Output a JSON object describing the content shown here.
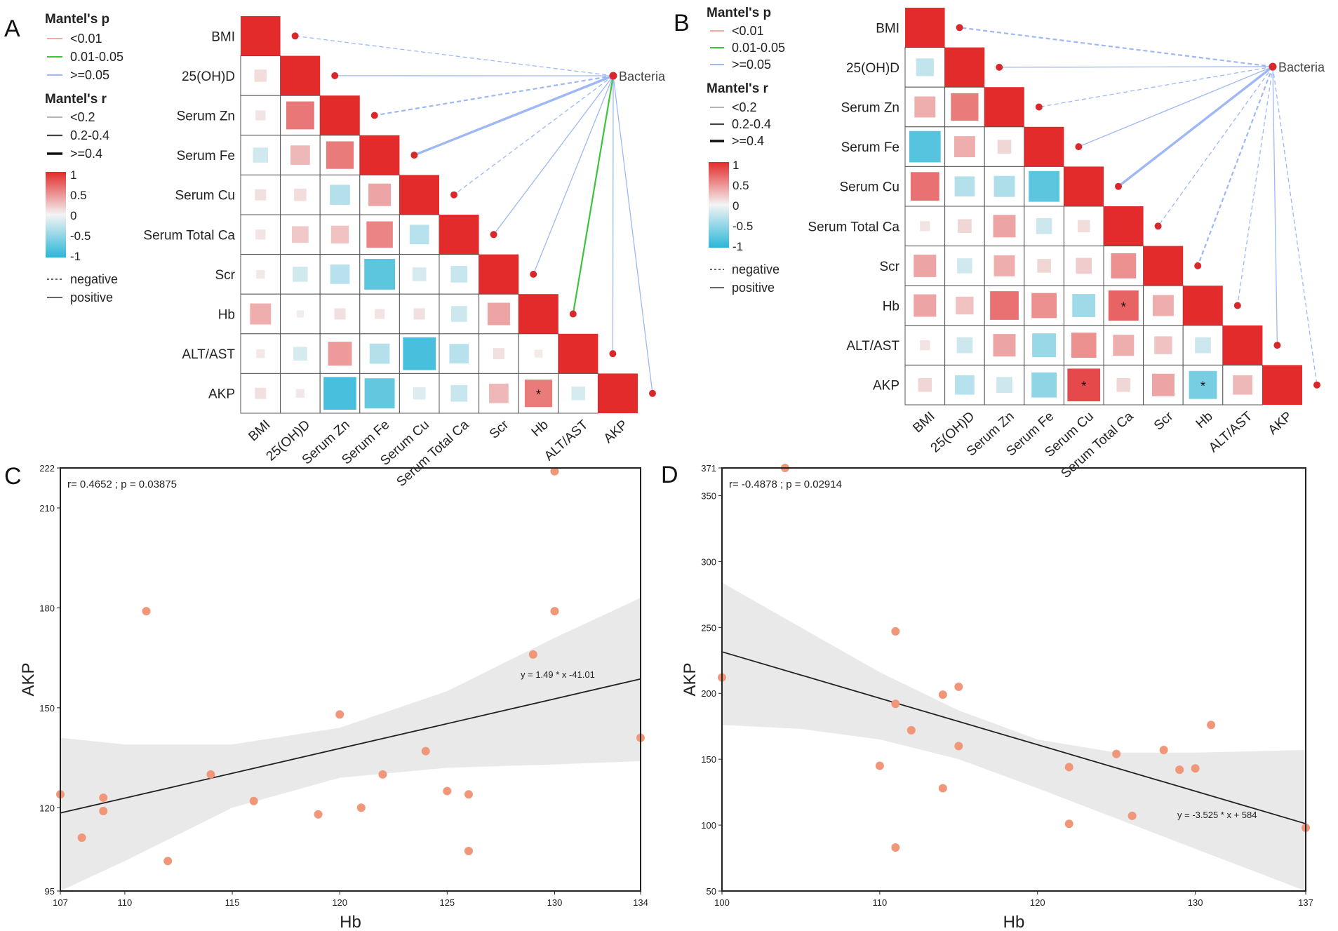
{
  "colors": {
    "neg_strong": "#2ab6d8",
    "neutral": "#f4f4f4",
    "pos_strong": "#e32b2b",
    "p_lt_001": "#f4a9a0",
    "p_001_005": "#3cc43c",
    "p_ge_005": "#9db8f5",
    "node": "#d8282b",
    "point": "#f0977a",
    "ci_band": "#e9e9e9",
    "fit_line": "#222222",
    "grid": "#888888"
  },
  "legend_titles": {
    "mantel_p": "Mantel's p",
    "mantel_r": "Mantel's r"
  },
  "legend_p": [
    "<0.01",
    "0.01-0.05",
    ">=0.05"
  ],
  "legend_r": [
    "<0.2",
    "0.2-0.4",
    ">=0.4"
  ],
  "legend_scale": [
    "1",
    "0.5",
    "0",
    "-0.5",
    "-1"
  ],
  "legend_sign": [
    "negative",
    "positive"
  ],
  "node_label": "Bacteria",
  "chart_data": [
    {
      "panel": "A",
      "type": "heatmap",
      "subtype": "mantel-correlation",
      "variables": [
        "BMI",
        "25(OH)D",
        "Serum Zn",
        "Serum Fe",
        "Serum Cu",
        "Serum Total Ca",
        "Scr",
        "Hb",
        "ALT/AST",
        "AKP"
      ],
      "matrix": [
        [
          1,
          0,
          0,
          0,
          0,
          0,
          0,
          0,
          0,
          0
        ],
        [
          0.12,
          1,
          0,
          0,
          0,
          0,
          0,
          0,
          0,
          0
        ],
        [
          0.08,
          0.62,
          1,
          0,
          0,
          0,
          0,
          0,
          0,
          0
        ],
        [
          -0.18,
          0.3,
          0.6,
          1,
          0,
          0,
          0,
          0,
          0,
          0
        ],
        [
          0.1,
          0.12,
          -0.32,
          0.4,
          1,
          0,
          0,
          0,
          0,
          0
        ],
        [
          0.08,
          0.22,
          0.25,
          0.55,
          -0.3,
          1,
          0,
          0,
          0,
          0
        ],
        [
          0.06,
          -0.18,
          -0.3,
          -0.75,
          -0.15,
          -0.22,
          1,
          0,
          0,
          0
        ],
        [
          0.35,
          0.04,
          0.1,
          0.08,
          0.1,
          -0.2,
          0.4,
          1,
          0,
          0
        ],
        [
          0.06,
          -0.15,
          0.45,
          -0.32,
          -0.85,
          -0.3,
          0.1,
          0.05,
          1,
          0
        ],
        [
          0.1,
          0.06,
          -0.85,
          -0.72,
          -0.12,
          -0.22,
          0.3,
          0.6,
          -0.15,
          1
        ]
      ],
      "stars": [
        [
          9,
          7
        ]
      ],
      "mantel_links": [
        {
          "to": "BMI",
          "p": ">=0.05",
          "r": "<0.2",
          "sign": "negative"
        },
        {
          "to": "25(OH)D",
          "p": ">=0.05",
          "r": "<0.2",
          "sign": "positive"
        },
        {
          "to": "Serum Zn",
          "p": ">=0.05",
          "r": "0.2-0.4",
          "sign": "negative"
        },
        {
          "to": "Serum Fe",
          "p": ">=0.05",
          "r": ">=0.4",
          "sign": "positive"
        },
        {
          "to": "Serum Cu",
          "p": ">=0.05",
          "r": "<0.2",
          "sign": "negative"
        },
        {
          "to": "Serum Total Ca",
          "p": ">=0.05",
          "r": "<0.2",
          "sign": "positive"
        },
        {
          "to": "Scr",
          "p": ">=0.05",
          "r": "<0.2",
          "sign": "positive"
        },
        {
          "to": "Hb",
          "p": "0.01-0.05",
          "r": "0.2-0.4",
          "sign": "positive"
        },
        {
          "to": "ALT/AST",
          "p": ">=0.05",
          "r": "<0.2",
          "sign": "positive"
        },
        {
          "to": "AKP",
          "p": ">=0.05",
          "r": "<0.2",
          "sign": "positive"
        }
      ]
    },
    {
      "panel": "B",
      "type": "heatmap",
      "subtype": "mantel-correlation",
      "variables": [
        "BMI",
        "25(OH)D",
        "Serum Zn",
        "Serum Fe",
        "Serum Cu",
        "Serum Total Ca",
        "Scr",
        "Hb",
        "ALT/AST",
        "AKP"
      ],
      "matrix": [
        [
          1,
          0,
          0,
          0,
          0,
          0,
          0,
          0,
          0,
          0
        ],
        [
          -0.25,
          1,
          0,
          0,
          0,
          0,
          0,
          0,
          0,
          0
        ],
        [
          0.35,
          0.6,
          1,
          0,
          0,
          0,
          0,
          0,
          0,
          0
        ],
        [
          -0.78,
          0.35,
          0.15,
          1,
          0,
          0,
          0,
          0,
          0,
          0
        ],
        [
          0.65,
          -0.32,
          -0.35,
          -0.75,
          1,
          0,
          0,
          0,
          0,
          0
        ],
        [
          0.08,
          0.15,
          0.4,
          -0.2,
          0.12,
          1,
          0,
          0,
          0,
          0
        ],
        [
          0.4,
          -0.18,
          0.35,
          0.15,
          0.2,
          0.5,
          1,
          0,
          0,
          0
        ],
        [
          0.4,
          0.25,
          0.65,
          0.5,
          -0.42,
          0.72,
          0.35,
          1,
          0,
          0
        ],
        [
          0.08,
          -0.2,
          0.4,
          -0.45,
          0.5,
          0.35,
          0.25,
          -0.2,
          1,
          0
        ],
        [
          0.15,
          -0.3,
          -0.2,
          -0.5,
          0.85,
          0.15,
          0.4,
          -0.62,
          0.3,
          1
        ]
      ],
      "stars": [
        [
          7,
          5
        ],
        [
          9,
          4
        ],
        [
          9,
          7
        ]
      ],
      "mantel_links": [
        {
          "to": "BMI",
          "p": ">=0.05",
          "r": "0.2-0.4",
          "sign": "negative"
        },
        {
          "to": "25(OH)D",
          "p": ">=0.05",
          "r": "<0.2",
          "sign": "positive"
        },
        {
          "to": "Serum Zn",
          "p": ">=0.05",
          "r": "<0.2",
          "sign": "negative"
        },
        {
          "to": "Serum Fe",
          "p": ">=0.05",
          "r": "<0.2",
          "sign": "positive"
        },
        {
          "to": "Serum Cu",
          "p": ">=0.05",
          "r": ">=0.4",
          "sign": "positive"
        },
        {
          "to": "Serum Total Ca",
          "p": ">=0.05",
          "r": "<0.2",
          "sign": "negative"
        },
        {
          "to": "Scr",
          "p": ">=0.05",
          "r": "0.2-0.4",
          "sign": "negative"
        },
        {
          "to": "Hb",
          "p": ">=0.05",
          "r": "<0.2",
          "sign": "negative"
        },
        {
          "to": "ALT/AST",
          "p": ">=0.05",
          "r": "<0.2",
          "sign": "positive"
        },
        {
          "to": "AKP",
          "p": ">=0.05",
          "r": "<0.2",
          "sign": "negative"
        }
      ]
    },
    {
      "panel": "C",
      "type": "scatter",
      "xlabel": "Hb",
      "ylabel": "AKP",
      "xlim": [
        107,
        134
      ],
      "ylim": [
        95,
        222
      ],
      "xticks": [
        107,
        110,
        115,
        120,
        125,
        130,
        134
      ],
      "yticks": [
        95,
        120,
        150,
        180,
        210,
        222
      ],
      "annotation": "r= 0.4652 ; p = 0.03875",
      "equation": "y = 1.49 * x -41.01",
      "fit": {
        "slope": 1.49,
        "intercept": -41.01
      },
      "ci": {
        "x": [
          107,
          110,
          115,
          120,
          125,
          130,
          134
        ],
        "lower": [
          95,
          104,
          120,
          129,
          132,
          133,
          134
        ],
        "upper": [
          141,
          139,
          139,
          144,
          155,
          171,
          183
        ]
      },
      "points": [
        [
          107,
          124
        ],
        [
          108,
          111
        ],
        [
          109,
          123
        ],
        [
          109,
          119
        ],
        [
          111,
          179
        ],
        [
          112,
          104
        ],
        [
          114,
          130
        ],
        [
          116,
          122
        ],
        [
          119,
          118
        ],
        [
          120,
          148
        ],
        [
          121,
          120
        ],
        [
          122,
          130
        ],
        [
          124,
          137
        ],
        [
          125,
          125
        ],
        [
          126,
          124
        ],
        [
          126,
          107
        ],
        [
          129,
          166
        ],
        [
          130,
          179
        ],
        [
          130,
          221
        ],
        [
          134,
          141
        ]
      ]
    },
    {
      "panel": "D",
      "type": "scatter",
      "xlabel": "Hb",
      "ylabel": "AKP",
      "xlim": [
        100,
        137
      ],
      "ylim": [
        50,
        371
      ],
      "xticks": [
        100,
        110,
        120,
        130,
        137
      ],
      "yticks": [
        50,
        100,
        150,
        200,
        250,
        300,
        350,
        371
      ],
      "annotation": "r= -0.4878 ; p = 0.02914",
      "equation": "y = -3.525 * x + 584",
      "fit": {
        "slope": -3.525,
        "intercept": 584
      },
      "ci": {
        "x": [
          100,
          105,
          110,
          115,
          120,
          125,
          130,
          137
        ],
        "lower": [
          176,
          173,
          165,
          150,
          128,
          105,
          82,
          50
        ],
        "upper": [
          284,
          250,
          216,
          187,
          165,
          155,
          155,
          157
        ]
      },
      "points": [
        [
          100,
          212
        ],
        [
          104,
          371
        ],
        [
          110,
          145
        ],
        [
          111,
          247
        ],
        [
          111,
          192
        ],
        [
          111,
          83
        ],
        [
          112,
          172
        ],
        [
          114,
          199
        ],
        [
          114,
          128
        ],
        [
          115,
          205
        ],
        [
          115,
          160
        ],
        [
          122,
          144
        ],
        [
          122,
          101
        ],
        [
          125,
          154
        ],
        [
          126,
          107
        ],
        [
          128,
          157
        ],
        [
          129,
          142
        ],
        [
          130,
          143
        ],
        [
          131,
          176
        ],
        [
          137,
          98
        ]
      ]
    }
  ]
}
